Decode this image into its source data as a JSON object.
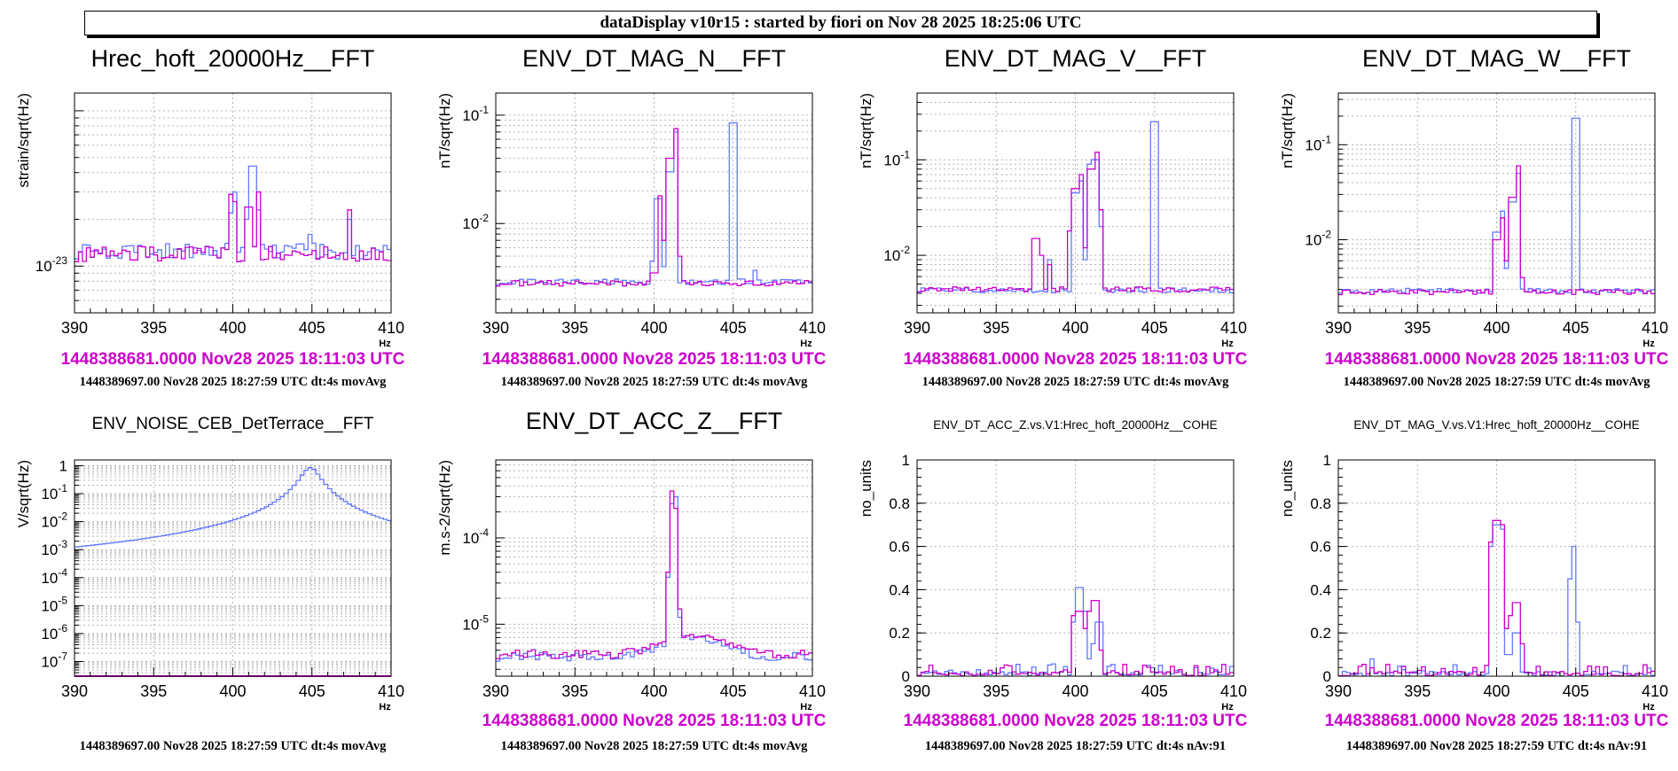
{
  "header": "dataDisplay v10r15 : started by fiori on Nov 28 2025 18:25:06 UTC",
  "colors": {
    "trace_blue": "#6478ff",
    "trace_magenta": "#cc00cc",
    "grid": "#b4b4b4"
  },
  "x_unit": "Hz",
  "chart_data": [
    {
      "type": "line",
      "title": "Hrec_hoft_20000Hz__FFT",
      "title_size": "large",
      "ylabel": "strain/sqrt(Hz)",
      "yscale": "log",
      "ylim": [
        5e-24,
        1.3e-22
      ],
      "xlim": [
        390,
        410
      ],
      "xticks": [
        390,
        395,
        400,
        405,
        410
      ],
      "yticks": [
        {
          "v": 1e-23,
          "label": "10-23"
        }
      ],
      "info_line1": "1448388681.0000 Nov28 2025 18:11:03 UTC",
      "info_line2": "1448389697.00 Nov28 2025 18:27:59 UTC dt:4s movAvg",
      "series": [
        {
          "name": "blue",
          "color": "#6478ff",
          "base": 1.25e-23,
          "noise": 0.12,
          "peaks": [
            {
              "f": 399.9,
              "v": 2.2e-23
            },
            {
              "f": 400.2,
              "v": 3e-23
            },
            {
              "f": 401.0,
              "v": 2e-23
            },
            {
              "f": 401.25,
              "v": 4.4e-23
            },
            {
              "f": 401.5,
              "v": 2.3e-23
            },
            {
              "f": 404.8,
              "v": 1.6e-23
            },
            {
              "f": 407.3,
              "v": 2e-23
            }
          ]
        },
        {
          "name": "magenta",
          "color": "#cc00cc",
          "base": 1.2e-23,
          "noise": 0.12,
          "peaks": [
            {
              "f": 399.9,
              "v": 2.9e-23
            },
            {
              "f": 400.2,
              "v": 2.6e-23
            },
            {
              "f": 401.0,
              "v": 2.4e-23
            },
            {
              "f": 401.6,
              "v": 3e-23
            },
            {
              "f": 407.4,
              "v": 2.3e-23
            }
          ]
        }
      ]
    },
    {
      "type": "line",
      "title": "ENV_DT_MAG_N__FFT",
      "title_size": "large",
      "ylabel": "nT/sqrt(Hz)",
      "yscale": "log",
      "ylim": [
        0.0015,
        0.16
      ],
      "xlim": [
        390,
        410
      ],
      "xticks": [
        390,
        395,
        400,
        405,
        410
      ],
      "yticks": [
        {
          "v": 0.01,
          "label": "10-2"
        },
        {
          "v": 0.1,
          "label": "10-1"
        }
      ],
      "info_line1": "1448388681.0000 Nov28 2025 18:11:03 UTC",
      "info_line2": "1448389697.00 Nov28 2025 18:27:59 UTC dt:4s movAvg",
      "series": [
        {
          "name": "blue",
          "color": "#6478ff",
          "base": 0.0029,
          "noise": 0.06,
          "peaks": [
            {
              "f": 400.0,
              "v": 0.0045
            },
            {
              "f": 400.25,
              "v": 0.017
            },
            {
              "f": 400.5,
              "v": 0.004
            },
            {
              "f": 401.0,
              "v": 0.03
            },
            {
              "f": 401.3,
              "v": 0.07
            },
            {
              "f": 404.8,
              "v": 0.04
            },
            {
              "f": 405.0,
              "v": 0.085
            },
            {
              "f": 406.3,
              "v": 0.0037
            }
          ]
        },
        {
          "name": "magenta",
          "color": "#cc00cc",
          "base": 0.0028,
          "noise": 0.06,
          "peaks": [
            {
              "f": 400.0,
              "v": 0.0035
            },
            {
              "f": 400.3,
              "v": 0.018
            },
            {
              "f": 400.6,
              "v": 0.007
            },
            {
              "f": 401.0,
              "v": 0.04
            },
            {
              "f": 401.3,
              "v": 0.075
            },
            {
              "f": 401.6,
              "v": 0.005
            }
          ]
        }
      ]
    },
    {
      "type": "line",
      "title": "ENV_DT_MAG_V__FFT",
      "title_size": "large",
      "ylabel": "nT/sqrt(Hz)",
      "yscale": "log",
      "ylim": [
        0.0025,
        0.5
      ],
      "xlim": [
        390,
        410
      ],
      "xticks": [
        390,
        395,
        400,
        405,
        410
      ],
      "yticks": [
        {
          "v": 0.01,
          "label": "10-2"
        },
        {
          "v": 0.1,
          "label": "10-1"
        }
      ],
      "info_line1": "1448388681.0000 Nov28 2025 18:11:03 UTC",
      "info_line2": "1448389697.00 Nov28 2025 18:27:59 UTC dt:4s movAvg",
      "series": [
        {
          "name": "blue",
          "color": "#6478ff",
          "base": 0.0043,
          "noise": 0.06,
          "peaks": [
            {
              "f": 398.3,
              "v": 0.009
            },
            {
              "f": 400.0,
              "v": 0.045
            },
            {
              "f": 400.3,
              "v": 0.06
            },
            {
              "f": 400.6,
              "v": 0.009
            },
            {
              "f": 401.0,
              "v": 0.09
            },
            {
              "f": 401.25,
              "v": 0.1
            },
            {
              "f": 401.6,
              "v": 0.02
            },
            {
              "f": 404.8,
              "v": 0.1
            },
            {
              "f": 405.0,
              "v": 0.25
            }
          ]
        },
        {
          "name": "magenta",
          "color": "#cc00cc",
          "base": 0.0044,
          "noise": 0.06,
          "peaks": [
            {
              "f": 397.5,
              "v": 0.015
            },
            {
              "f": 397.8,
              "v": 0.01
            },
            {
              "f": 398.3,
              "v": 0.008
            },
            {
              "f": 399.7,
              "v": 0.018
            },
            {
              "f": 400.0,
              "v": 0.05
            },
            {
              "f": 400.3,
              "v": 0.07
            },
            {
              "f": 400.6,
              "v": 0.012
            },
            {
              "f": 401.0,
              "v": 0.08
            },
            {
              "f": 401.3,
              "v": 0.12
            },
            {
              "f": 401.6,
              "v": 0.03
            }
          ]
        }
      ]
    },
    {
      "type": "line",
      "title": "ENV_DT_MAG_W__FFT",
      "title_size": "large",
      "ylabel": "nT/sqrt(Hz)",
      "yscale": "log",
      "ylim": [
        0.0017,
        0.35
      ],
      "xlim": [
        390,
        410
      ],
      "xticks": [
        390,
        395,
        400,
        405,
        410
      ],
      "yticks": [
        {
          "v": 0.01,
          "label": "10-2"
        },
        {
          "v": 0.1,
          "label": "10-1"
        }
      ],
      "info_line1": "1448388681.0000 Nov28 2025 18:11:03 UTC",
      "info_line2": "1448389697.00 Nov28 2025 18:27:59 UTC dt:4s movAvg",
      "series": [
        {
          "name": "blue",
          "color": "#6478ff",
          "base": 0.0029,
          "noise": 0.06,
          "peaks": [
            {
              "f": 400.0,
              "v": 0.012
            },
            {
              "f": 400.3,
              "v": 0.02
            },
            {
              "f": 400.6,
              "v": 0.005
            },
            {
              "f": 401.0,
              "v": 0.025
            },
            {
              "f": 401.3,
              "v": 0.05
            },
            {
              "f": 404.8,
              "v": 0.1
            },
            {
              "f": 405.0,
              "v": 0.19
            }
          ]
        },
        {
          "name": "magenta",
          "color": "#cc00cc",
          "base": 0.0028,
          "noise": 0.06,
          "peaks": [
            {
              "f": 400.0,
              "v": 0.01
            },
            {
              "f": 400.3,
              "v": 0.017
            },
            {
              "f": 400.6,
              "v": 0.006
            },
            {
              "f": 401.0,
              "v": 0.028
            },
            {
              "f": 401.3,
              "v": 0.06
            },
            {
              "f": 401.6,
              "v": 0.004
            }
          ]
        }
      ]
    },
    {
      "type": "line",
      "title": "ENV_NOISE_CEB_DetTerrace__FFT",
      "title_size": "medium",
      "ylabel": "V/sqrt(Hz)",
      "yscale": "log",
      "ylim": [
        3e-08,
        1.6
      ],
      "xlim": [
        390,
        410
      ],
      "xticks": [
        390,
        395,
        400,
        405,
        410
      ],
      "yticks": [
        {
          "v": 1e-07,
          "label": "10-7"
        },
        {
          "v": 1e-06,
          "label": "10-6"
        },
        {
          "v": 1e-05,
          "label": "10-5"
        },
        {
          "v": 0.0001,
          "label": "10-4"
        },
        {
          "v": 0.001,
          "label": "10-3"
        },
        {
          "v": 0.01,
          "label": "10-2"
        },
        {
          "v": 0.1,
          "label": "10-1"
        },
        {
          "v": 1,
          "label": "1"
        }
      ],
      "info_line1": "",
      "info_line2": "1448389697.00 Nov28 2025 18:27:59 UTC dt:4s movAvg",
      "series": [
        {
          "name": "blue",
          "color": "#6478ff",
          "base": 0,
          "noise": 0,
          "resonance": {
            "f0": 404.9,
            "amp": 0.85,
            "gamma": 0.0014
          },
          "peaks": []
        },
        {
          "name": "magenta",
          "color": "#cc00cc",
          "flat_bottom": true,
          "base": 0,
          "noise": 0,
          "peaks": []
        }
      ]
    },
    {
      "type": "line",
      "title": "ENV_DT_ACC_Z__FFT",
      "title_size": "large",
      "ylabel": "m.s-2/sqrt(Hz)",
      "yscale": "log",
      "ylim": [
        2.5e-06,
        0.0008
      ],
      "xlim": [
        390,
        410
      ],
      "xticks": [
        390,
        395,
        400,
        405,
        410
      ],
      "yticks": [
        {
          "v": 1e-05,
          "label": "10-5"
        },
        {
          "v": 0.0001,
          "label": "10-4"
        }
      ],
      "info_line1": "1448388681.0000 Nov28 2025 18:11:03 UTC",
      "info_line2": "1448389697.00 Nov28 2025 18:27:59 UTC dt:4s movAvg",
      "series": [
        {
          "name": "blue",
          "color": "#6478ff",
          "base": 4.2e-06,
          "noise": 0.12,
          "hump": {
            "f": 402.5,
            "v": 2.8e-06,
            "w": 2.5
          },
          "peaks": [
            {
              "f": 400.9,
              "v": 3.5e-05
            },
            {
              "f": 401.1,
              "v": 0.00025
            },
            {
              "f": 401.35,
              "v": 0.0003
            },
            {
              "f": 401.6,
              "v": 1.2e-05
            }
          ]
        },
        {
          "name": "magenta",
          "color": "#cc00cc",
          "base": 4.5e-06,
          "noise": 0.12,
          "hump": {
            "f": 402.5,
            "v": 3e-06,
            "w": 2.5
          },
          "peaks": [
            {
              "f": 401.0,
              "v": 4e-05
            },
            {
              "f": 401.2,
              "v": 0.00035
            },
            {
              "f": 401.4,
              "v": 0.00022
            },
            {
              "f": 401.7,
              "v": 1.5e-05
            }
          ]
        }
      ]
    },
    {
      "type": "line",
      "title": "ENV_DT_ACC_Z.vs.V1:Hrec_hoft_20000Hz__COHE",
      "title_size": "small",
      "ylabel": "no_units",
      "yscale": "linear",
      "ylim": [
        0,
        1
      ],
      "xlim": [
        390,
        410
      ],
      "xticks": [
        390,
        395,
        400,
        405,
        410
      ],
      "yticks": [
        {
          "v": 0,
          "label": "0"
        },
        {
          "v": 0.2,
          "label": "0.2"
        },
        {
          "v": 0.4,
          "label": "0.4"
        },
        {
          "v": 0.6,
          "label": "0.6"
        },
        {
          "v": 0.8,
          "label": "0.8"
        },
        {
          "v": 1,
          "label": "1"
        }
      ],
      "info_line1": "1448388681.0000 Nov28 2025 18:11:03 UTC",
      "info_line2": "1448389697.00 Nov28 2025 18:27:59 UTC dt:4s nAv:91",
      "series": [
        {
          "name": "blue",
          "color": "#6478ff",
          "base": 0.012,
          "noise": 0.9,
          "peaks": [
            {
              "f": 400.0,
              "v": 0.25
            },
            {
              "f": 400.25,
              "v": 0.41
            },
            {
              "f": 400.5,
              "v": 0.3
            },
            {
              "f": 401.0,
              "v": 0.08
            },
            {
              "f": 401.25,
              "v": 0.15
            },
            {
              "f": 401.5,
              "v": 0.25
            },
            {
              "f": 405.3,
              "v": 0.05
            }
          ]
        },
        {
          "name": "magenta",
          "color": "#cc00cc",
          "base": 0.012,
          "noise": 0.9,
          "peaks": [
            {
              "f": 400.0,
              "v": 0.28
            },
            {
              "f": 400.25,
              "v": 0.3
            },
            {
              "f": 400.5,
              "v": 0.22
            },
            {
              "f": 401.0,
              "v": 0.3
            },
            {
              "f": 401.25,
              "v": 0.35
            },
            {
              "f": 401.5,
              "v": 0.12
            }
          ]
        }
      ]
    },
    {
      "type": "line",
      "title": "ENV_DT_MAG_V.vs.V1:Hrec_hoft_20000Hz__COHE",
      "title_size": "small",
      "ylabel": "no_units",
      "yscale": "linear",
      "ylim": [
        0,
        1
      ],
      "xlim": [
        390,
        410
      ],
      "xticks": [
        390,
        395,
        400,
        405,
        410
      ],
      "yticks": [
        {
          "v": 0,
          "label": "0"
        },
        {
          "v": 0.2,
          "label": "0.2"
        },
        {
          "v": 0.4,
          "label": "0.4"
        },
        {
          "v": 0.6,
          "label": "0.6"
        },
        {
          "v": 0.8,
          "label": "0.8"
        },
        {
          "v": 1,
          "label": "1"
        }
      ],
      "info_line1": "1448388681.0000 Nov28 2025 18:11:03 UTC",
      "info_line2": "1448389697.00 Nov28 2025 18:27:59 UTC dt:4s nAv:91",
      "series": [
        {
          "name": "blue",
          "color": "#6478ff",
          "base": 0.012,
          "noise": 0.9,
          "peaks": [
            {
              "f": 399.75,
              "v": 0.6
            },
            {
              "f": 400.0,
              "v": 0.7
            },
            {
              "f": 400.25,
              "v": 0.68
            },
            {
              "f": 400.5,
              "v": 0.1
            },
            {
              "f": 401.0,
              "v": 0.1
            },
            {
              "f": 401.25,
              "v": 0.2
            },
            {
              "f": 404.7,
              "v": 0.45
            },
            {
              "f": 404.95,
              "v": 0.6
            },
            {
              "f": 405.2,
              "v": 0.25
            },
            {
              "f": 392.2,
              "v": 0.08
            }
          ]
        },
        {
          "name": "magenta",
          "color": "#cc00cc",
          "base": 0.012,
          "noise": 0.9,
          "peaks": [
            {
              "f": 399.75,
              "v": 0.62
            },
            {
              "f": 400.0,
              "v": 0.72
            },
            {
              "f": 400.25,
              "v": 0.7
            },
            {
              "f": 400.5,
              "v": 0.22
            },
            {
              "f": 401.0,
              "v": 0.28
            },
            {
              "f": 401.25,
              "v": 0.34
            },
            {
              "f": 401.5,
              "v": 0.15
            }
          ]
        }
      ]
    }
  ]
}
